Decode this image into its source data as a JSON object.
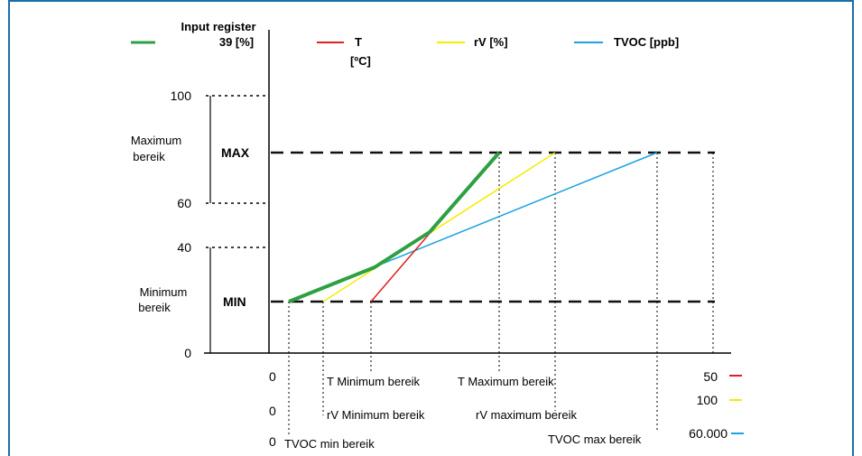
{
  "legend": [
    {
      "name": "Input register 39 [%]",
      "line1": "Input register",
      "line2": "39 [%]",
      "color": "#2ea043"
    },
    {
      "name": "T [ºC]",
      "line1": "T",
      "line2": "[ºC]",
      "color": "#e02020"
    },
    {
      "name": "rV [%]",
      "line1": "rV [%]",
      "line2": "",
      "color": "#f5ec00"
    },
    {
      "name": "TVOC [ppb]",
      "line1": "TVOC [ppb]",
      "line2": "",
      "color": "#1aa3e0"
    }
  ],
  "y_ticks": [
    "100",
    "60",
    "40",
    "0"
  ],
  "band_labels": {
    "maximum": {
      "line1": "Maximum",
      "line2": "bereik",
      "tag": "MAX"
    },
    "minimum": {
      "line1": "Minimum",
      "line2": "bereik",
      "tag": "MIN"
    }
  },
  "x_rows": [
    {
      "zero": "0",
      "min_label": "T Minimum bereik",
      "max_label": "T Maximum bereik",
      "end_value": "50",
      "color": "#e02020"
    },
    {
      "zero": "0",
      "min_label": "rV Minimum bereik",
      "max_label": "rV maximum bereik",
      "end_value": "100",
      "color": "#f5ec00"
    },
    {
      "zero": "0",
      "min_label": "TVOC min bereik",
      "max_label": "TVOC max bereik",
      "end_value": "60.000",
      "color": "#1aa3e0"
    }
  ],
  "colors": {
    "frame": "#1b6fa8",
    "axis": "#000000",
    "dash": "#111111"
  }
}
